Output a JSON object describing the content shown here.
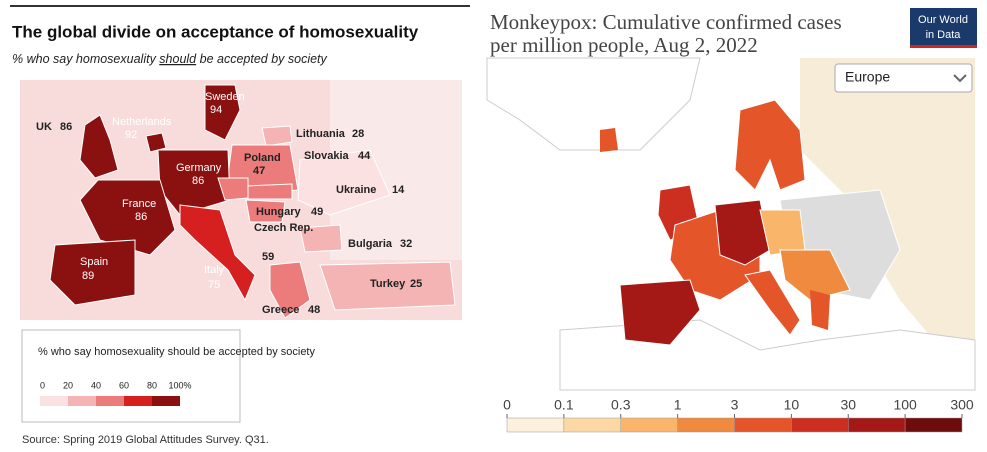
{
  "left": {
    "title": "The global divide on acceptance of homosexuality",
    "subtitle": {
      "before": "% who say homosexuality ",
      "emphasis": "should",
      "after": " be accepted by society"
    },
    "countries": [
      {
        "name": "UK",
        "value": 86
      },
      {
        "name": "Netherlands",
        "value": 92
      },
      {
        "name": "Sweden",
        "value": 94
      },
      {
        "name": "Lithuania",
        "value": 28
      },
      {
        "name": "Poland",
        "value": 47
      },
      {
        "name": "Slovakia",
        "value": 44
      },
      {
        "name": "Germany",
        "value": 86
      },
      {
        "name": "Ukraine",
        "value": 14
      },
      {
        "name": "France",
        "value": 86
      },
      {
        "name": "Hungary",
        "value": 49
      },
      {
        "name": "Czech Rep.",
        "value": 59
      },
      {
        "name": "Bulgaria",
        "value": 32
      },
      {
        "name": "Spain",
        "value": 89
      },
      {
        "name": "Italy",
        "value": 75
      },
      {
        "name": "Turkey",
        "value": 25
      },
      {
        "name": "Greece",
        "value": 48
      }
    ],
    "legend": {
      "title": "% who say homosexuality should be accepted by society",
      "ticks": [
        0,
        20,
        40,
        60,
        80,
        {
          "value": 100,
          "label": "100%"
        }
      ],
      "colors": [
        "#fbe1e1",
        "#f4b4b4",
        "#ec7b7b",
        "#d62020",
        "#8b1010"
      ]
    },
    "source": "Source: Spring 2019 Global Attitudes Survey. Q31."
  },
  "right": {
    "title": [
      "Monkeypox: Cumulative confirmed cases",
      "per million people, Aug 2, 2022"
    ],
    "logo": [
      "Our World",
      "in Data"
    ],
    "region": "Europe",
    "legend": {
      "ticks": [
        0,
        0.1,
        0.3,
        1,
        3,
        10,
        30,
        100,
        300
      ],
      "colors": [
        "#fdf0dc",
        "#fcd9a4",
        "#f9b56a",
        "#f08a3e",
        "#e4552a",
        "#cc2f20",
        "#a41916",
        "#6e0c0c"
      ]
    }
  }
}
